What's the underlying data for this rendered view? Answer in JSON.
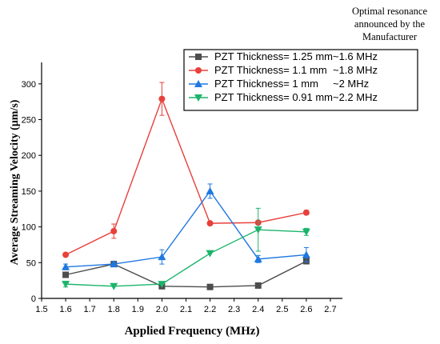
{
  "chart_data": {
    "type": "line",
    "xlabel": "Applied Frequency (MHz)",
    "ylabel": "Average Streaming Velocity (μm/s)",
    "xlim": [
      1.5,
      2.75
    ],
    "ylim": [
      0,
      330
    ],
    "xticks": [
      "1.5",
      "1.6",
      "1.7",
      "1.8",
      "1.9",
      "2.0",
      "2.1",
      "2.2",
      "2.3",
      "2.4",
      "2.5",
      "2.6",
      "2.7"
    ],
    "yticks": [
      "0",
      "50",
      "100",
      "150",
      "200",
      "250",
      "300"
    ],
    "legend_position": "top-right",
    "annotation_lines": [
      "Optimal resonance",
      "announced by the",
      "Manufacturer"
    ],
    "series": [
      {
        "name": "PZT Thickness= 1.25 mm~1.6 MHz",
        "color": "#4d4d4d",
        "marker": "square",
        "x": [
          1.6,
          1.8,
          2.0,
          2.2,
          2.4,
          2.6
        ],
        "y": [
          33,
          48,
          17,
          16,
          18,
          52
        ],
        "err": [
          0,
          0,
          0,
          0,
          0,
          0
        ]
      },
      {
        "name": "PZT Thickness= 1.1 mm  ~1.8 MHz",
        "color": "#e8403a",
        "marker": "circle",
        "x": [
          1.6,
          1.8,
          2.0,
          2.2,
          2.4,
          2.6
        ],
        "y": [
          61,
          94,
          279,
          105,
          106,
          120
        ],
        "err": [
          0,
          10,
          23,
          0,
          0,
          3
        ]
      },
      {
        "name": "PZT Thickness= 1 mm     ~2 MHz",
        "color": "#1f78e0",
        "marker": "triangle-up",
        "x": [
          1.6,
          1.8,
          2.0,
          2.2,
          2.4,
          2.6
        ],
        "y": [
          44,
          48,
          58,
          150,
          55,
          61
        ],
        "err": [
          4,
          3,
          10,
          10,
          5,
          10
        ]
      },
      {
        "name": "PZT Thickness= 0.91 mm~2.2 MHz",
        "color": "#1cb46b",
        "marker": "triangle-down",
        "x": [
          1.6,
          1.8,
          2.0,
          2.2,
          2.4,
          2.6
        ],
        "y": [
          20,
          17,
          20,
          63,
          96,
          93
        ],
        "err": [
          4,
          0,
          0,
          0,
          30,
          5
        ]
      }
    ]
  }
}
